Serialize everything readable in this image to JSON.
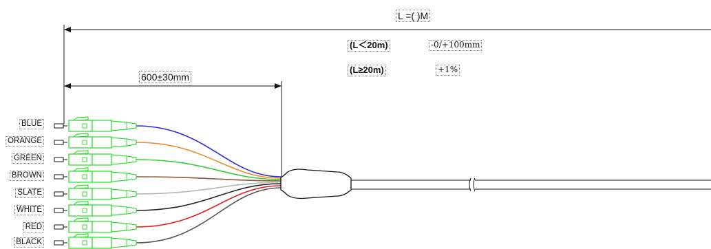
{
  "total_length_label": "L =(    )M",
  "breakout_length_label": "600±30mm",
  "tolerances": [
    {
      "condition": "(L＜20m)",
      "value": "-0/+100mm"
    },
    {
      "condition": "(L≥20m)",
      "value": "+1%"
    }
  ],
  "fibers": [
    {
      "label": "BLUE",
      "color": "#2b2bd6"
    },
    {
      "label": "ORANGE",
      "color": "#f08a2a"
    },
    {
      "label": "GREEN",
      "color": "#33cc33"
    },
    {
      "label": "BROWN",
      "color": "#8b5a3c"
    },
    {
      "label": "SLATE",
      "color": "#b5b5b5"
    },
    {
      "label": "WHITE",
      "color": "#222222"
    },
    {
      "label": "RED",
      "color": "#e02020"
    },
    {
      "label": "BLACK",
      "color": "#555555"
    }
  ],
  "colors": {
    "connector": "#33dd33",
    "line": "#111111"
  }
}
